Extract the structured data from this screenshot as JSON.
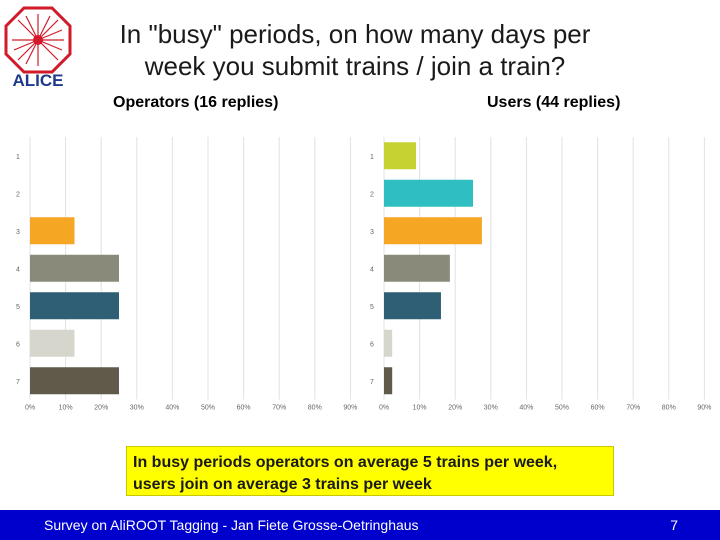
{
  "logo": {
    "text": "ALICE"
  },
  "title": "In \"busy\" periods, on how many days per week you submit trains / join a train?",
  "chart_data": [
    {
      "type": "bar",
      "orientation": "horizontal",
      "title": "Operators (16 replies)",
      "categories": [
        "1",
        "2",
        "3",
        "4",
        "5",
        "6",
        "7"
      ],
      "values": [
        0,
        0,
        12.5,
        25,
        25,
        12.5,
        25
      ],
      "colors": [
        "#c6d232",
        "#2fbfc2",
        "#f5a623",
        "#8a8a7a",
        "#2f5f74",
        "#d6d6cc",
        "#5f5a49"
      ],
      "xlim": [
        0,
        90
      ],
      "xticks": [
        "0%",
        "10%",
        "20%",
        "30%",
        "40%",
        "50%",
        "60%",
        "70%",
        "80%",
        "90%"
      ],
      "grid": true
    },
    {
      "type": "bar",
      "orientation": "horizontal",
      "title": "Users (44 replies)",
      "categories": [
        "1",
        "2",
        "3",
        "4",
        "5",
        "6",
        "7"
      ],
      "values": [
        9,
        25,
        27.5,
        18.5,
        16,
        2.3,
        2.3
      ],
      "colors": [
        "#c6d232",
        "#2fbfc2",
        "#f5a623",
        "#8a8a7a",
        "#2f5f74",
        "#d6d6cc",
        "#5f5a49"
      ],
      "xlim": [
        0,
        90
      ],
      "xticks": [
        "0%",
        "10%",
        "20%",
        "30%",
        "40%",
        "50%",
        "60%",
        "70%",
        "80%",
        "90%"
      ],
      "grid": true
    }
  ],
  "conclusion": {
    "line1": "In busy periods operators on average 5 trains per week,",
    "line2": "users join on average 3 trains per week"
  },
  "footer": {
    "left": "Survey on AliROOT Tagging - Jan Fiete Grosse-Oetringhaus",
    "page": "7"
  }
}
